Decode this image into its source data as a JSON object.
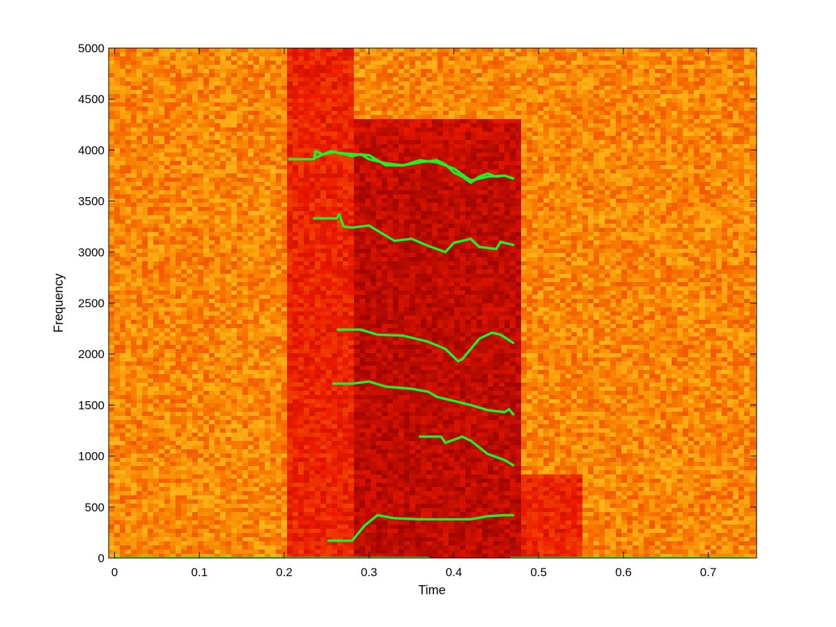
{
  "chart_data": {
    "type": "heatmap",
    "title": "",
    "xlabel": "Time",
    "ylabel": "Frequency",
    "xlim": [
      -0.007,
      0.757
    ],
    "ylim": [
      0,
      5000
    ],
    "xticks": [
      "0",
      "0.1",
      "0.2",
      "0.3",
      "0.4",
      "0.5",
      "0.6",
      "0.7"
    ],
    "yticks": [
      "0",
      "500",
      "1000",
      "1500",
      "2000",
      "2500",
      "3000",
      "3500",
      "4000",
      "4500",
      "5000"
    ],
    "grid": false,
    "legend": "none",
    "colormap": "hot",
    "colors": {
      "background_high": "#f7a020",
      "active_mid": "#e22010",
      "active_low": "#a00000",
      "track": "#22ee22"
    },
    "intensity_regions": [
      {
        "t_start": 0.0,
        "t_end": 0.205,
        "f_start": 0,
        "f_end": 5000,
        "level": "high"
      },
      {
        "t_start": 0.205,
        "t_end": 0.28,
        "f_start": 0,
        "f_end": 5000,
        "level": "mid"
      },
      {
        "t_start": 0.28,
        "t_end": 0.48,
        "f_start": 0,
        "f_end": 4300,
        "level": "low"
      },
      {
        "t_start": 0.48,
        "t_end": 0.55,
        "f_start": 0,
        "f_end": 800,
        "level": "mid"
      },
      {
        "t_start": 0.55,
        "t_end": 0.757,
        "f_start": 0,
        "f_end": 5000,
        "level": "high"
      }
    ],
    "series": [
      {
        "x": [
          0.206,
          0.235,
          0.237,
          0.245,
          0.26,
          0.28,
          0.29,
          0.3,
          0.32,
          0.34,
          0.36,
          0.38,
          0.39,
          0.4,
          0.41,
          0.42,
          0.43,
          0.44,
          0.45,
          0.46,
          0.47
        ],
        "y": [
          3910,
          3910,
          3990,
          3960,
          3980,
          3940,
          3960,
          3910,
          3870,
          3850,
          3880,
          3900,
          3860,
          3780,
          3740,
          3680,
          3740,
          3770,
          3740,
          3750,
          3720
        ]
      },
      {
        "x": [
          0.235,
          0.255,
          0.265,
          0.28,
          0.3,
          0.32,
          0.34,
          0.36,
          0.38,
          0.4,
          0.42,
          0.44,
          0.46,
          0.47
        ],
        "y": [
          3920,
          3990,
          3970,
          3960,
          3950,
          3850,
          3850,
          3900,
          3880,
          3820,
          3700,
          3740,
          3750,
          3720
        ]
      },
      {
        "x": [
          0.235,
          0.262,
          0.265,
          0.27,
          0.28,
          0.3,
          0.31,
          0.33,
          0.35,
          0.37,
          0.39,
          0.4,
          0.42,
          0.43,
          0.45,
          0.455,
          0.46,
          0.47
        ],
        "y": [
          3330,
          3330,
          3370,
          3250,
          3240,
          3260,
          3210,
          3110,
          3130,
          3060,
          3000,
          3090,
          3130,
          3050,
          3030,
          3100,
          3090,
          3070
        ]
      },
      {
        "x": [
          0.263,
          0.29,
          0.31,
          0.34,
          0.37,
          0.39,
          0.405,
          0.41,
          0.43,
          0.445,
          0.455,
          0.47
        ],
        "y": [
          2240,
          2240,
          2190,
          2180,
          2120,
          2050,
          1930,
          1950,
          2150,
          2210,
          2190,
          2110
        ]
      },
      {
        "x": [
          0.258,
          0.28,
          0.3,
          0.32,
          0.35,
          0.37,
          0.38,
          0.4,
          0.42,
          0.44,
          0.46,
          0.465,
          0.47
        ],
        "y": [
          1710,
          1710,
          1730,
          1680,
          1660,
          1630,
          1580,
          1540,
          1500,
          1450,
          1430,
          1460,
          1410
        ]
      },
      {
        "x": [
          0.36,
          0.385,
          0.39,
          0.41,
          0.42,
          0.44,
          0.46,
          0.47
        ],
        "y": [
          1190,
          1190,
          1130,
          1190,
          1150,
          1020,
          960,
          910
        ]
      },
      {
        "x": [
          0.252,
          0.28,
          0.295,
          0.31,
          0.33,
          0.36,
          0.38,
          0.4,
          0.42,
          0.44,
          0.46,
          0.47
        ],
        "y": [
          170,
          170,
          320,
          420,
          390,
          380,
          380,
          380,
          380,
          410,
          420,
          420
        ]
      },
      {
        "x": [
          0.0,
          0.37
        ],
        "y": [
          0,
          0
        ]
      },
      {
        "x": [
          0.468,
          0.748
        ],
        "y": [
          0,
          0
        ]
      }
    ]
  }
}
